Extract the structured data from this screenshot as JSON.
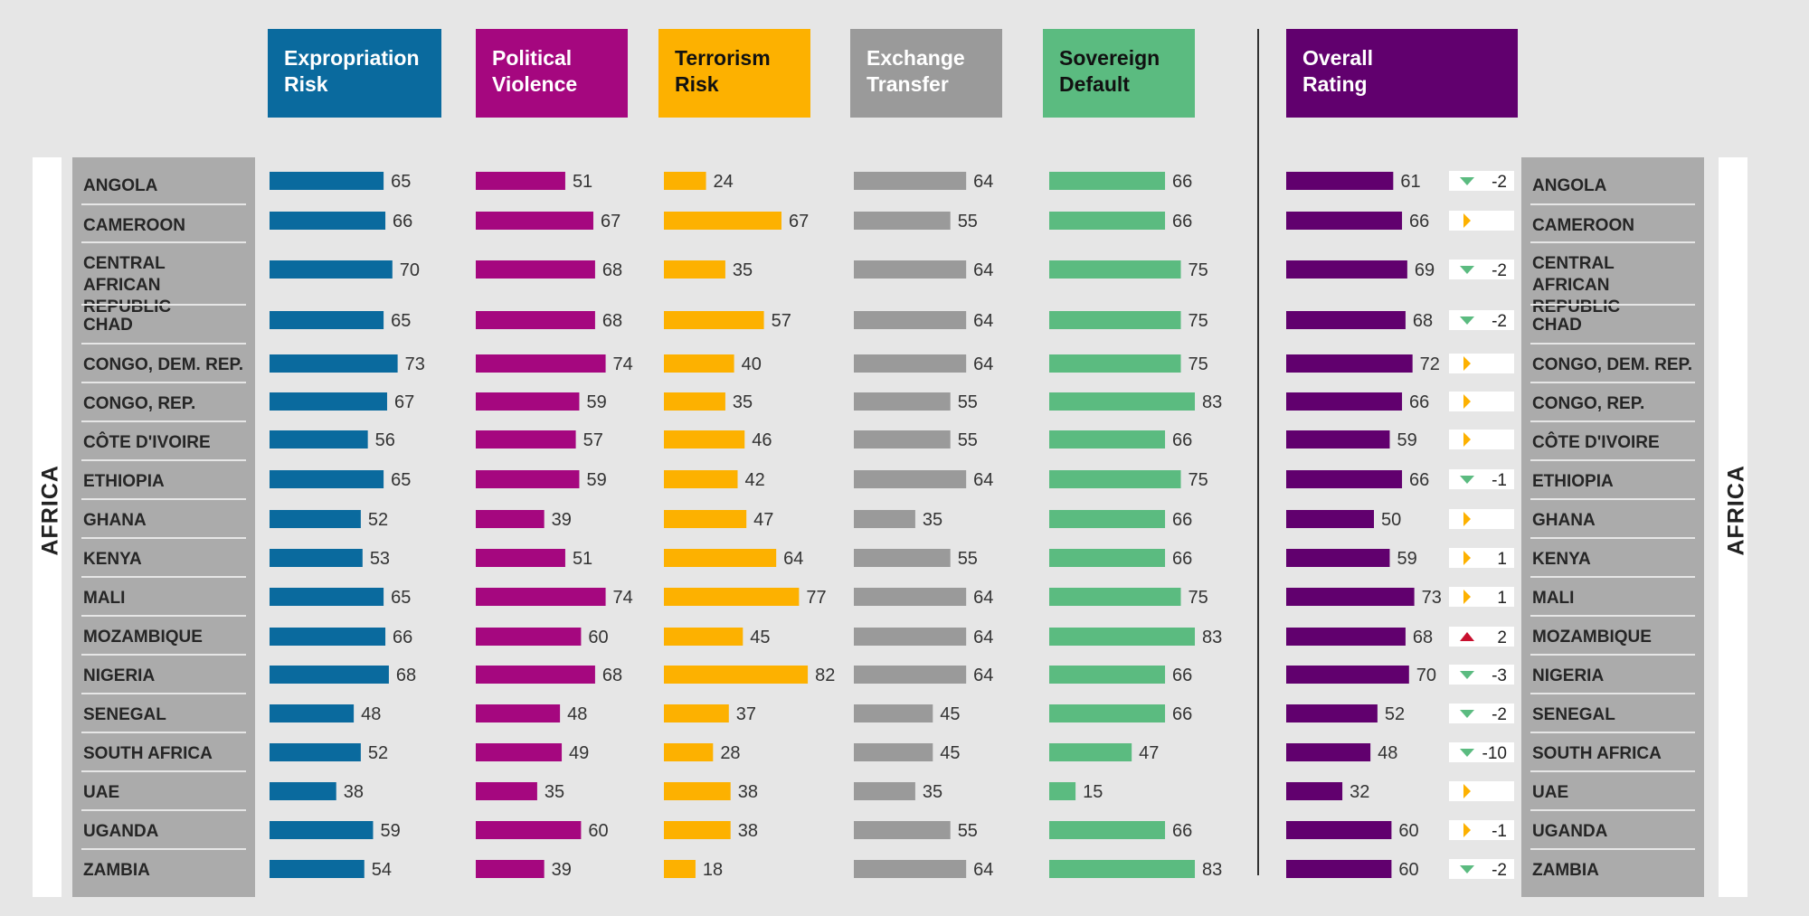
{
  "chart_data": {
    "type": "bar",
    "region": "AFRICA",
    "categories": [
      "ANGOLA",
      "CAMEROON",
      "CENTRAL\nAFRICAN REPUBLIC",
      "CHAD",
      "CONGO, DEM. REP.",
      "CONGO, REP.",
      "CÔTE D'IVOIRE",
      "ETHIOPIA",
      "GHANA",
      "KENYA",
      "MALI",
      "MOZAMBIQUE",
      "NIGERIA",
      "SENEGAL",
      "SOUTH AFRICA",
      "UAE",
      "UGANDA",
      "ZAMBIA"
    ],
    "series": [
      {
        "name": "Expropriation\nRisk",
        "color": "#0a6a9e",
        "text_color": "#ffffff",
        "values": [
          65,
          66,
          70,
          65,
          73,
          67,
          56,
          65,
          52,
          53,
          65,
          66,
          68,
          48,
          52,
          38,
          59,
          54
        ]
      },
      {
        "name": "Political\nViolence",
        "color": "#a5077f",
        "text_color": "#ffffff",
        "values": [
          51,
          67,
          68,
          68,
          74,
          59,
          57,
          59,
          39,
          51,
          74,
          60,
          68,
          48,
          49,
          35,
          60,
          39
        ]
      },
      {
        "name": "Terrorism\nRisk",
        "color": "#fdb100",
        "text_color": "#111111",
        "values": [
          24,
          67,
          35,
          57,
          40,
          35,
          46,
          42,
          47,
          64,
          77,
          45,
          82,
          37,
          28,
          38,
          38,
          18
        ]
      },
      {
        "name": "Exchange\nTransfer",
        "color": "#9a9a9a",
        "text_color": "#ffffff",
        "values": [
          64,
          55,
          64,
          64,
          64,
          55,
          55,
          64,
          35,
          55,
          64,
          64,
          64,
          45,
          45,
          35,
          55,
          64
        ]
      },
      {
        "name": "Sovereign\nDefault",
        "color": "#5bbb80",
        "text_color": "#111111",
        "values": [
          66,
          66,
          75,
          75,
          75,
          83,
          66,
          75,
          66,
          66,
          75,
          83,
          66,
          66,
          47,
          15,
          66,
          83
        ]
      },
      {
        "name": "Overall\nRating",
        "color": "#61006e",
        "text_color": "#ffffff",
        "values": [
          61,
          66,
          69,
          68,
          72,
          66,
          59,
          66,
          50,
          59,
          73,
          68,
          70,
          52,
          48,
          32,
          60,
          60
        ]
      }
    ],
    "changes": [
      {
        "dir": "down",
        "label": "-2"
      },
      {
        "dir": "flat",
        "label": ""
      },
      {
        "dir": "down",
        "label": "-2"
      },
      {
        "dir": "down",
        "label": "-2"
      },
      {
        "dir": "flat",
        "label": ""
      },
      {
        "dir": "flat",
        "label": ""
      },
      {
        "dir": "flat",
        "label": ""
      },
      {
        "dir": "down",
        "label": "-1"
      },
      {
        "dir": "flat",
        "label": ""
      },
      {
        "dir": "flat",
        "label": "1"
      },
      {
        "dir": "flat",
        "label": "1"
      },
      {
        "dir": "up",
        "label": "2"
      },
      {
        "dir": "down",
        "label": "-3"
      },
      {
        "dir": "down",
        "label": "-2"
      },
      {
        "dir": "down",
        "label": "-10"
      },
      {
        "dir": "flat",
        "label": ""
      },
      {
        "dir": "flat",
        "label": "-1"
      },
      {
        "dir": "down",
        "label": "-2"
      }
    ],
    "change_colors": {
      "down": "#5bbb80",
      "flat": "#fdb100",
      "up": "#c8102e"
    },
    "scale_max": 100
  }
}
